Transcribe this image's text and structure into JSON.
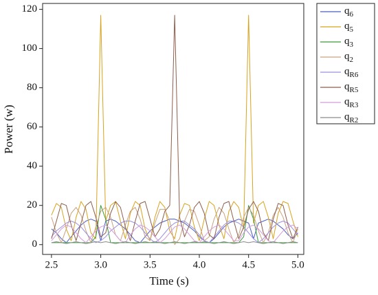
{
  "chart_data": {
    "type": "line",
    "xlabel": "Time (s)",
    "ylabel": "Power (w)",
    "x": [
      2.5,
      2.55,
      2.6,
      2.65,
      2.7,
      2.75,
      2.8,
      2.85,
      2.9,
      2.95,
      3.0,
      3.05,
      3.1,
      3.15,
      3.2,
      3.25,
      3.3,
      3.35,
      3.4,
      3.45,
      3.5,
      3.55,
      3.6,
      3.65,
      3.7,
      3.75,
      3.8,
      3.85,
      3.9,
      3.95,
      4.0,
      4.05,
      4.1,
      4.15,
      4.2,
      4.25,
      4.3,
      4.35,
      4.4,
      4.45,
      4.5,
      4.55,
      4.6,
      4.65,
      4.7,
      4.75,
      4.8,
      4.85,
      4.9,
      4.95,
      5.0
    ],
    "xlim": [
      2.41,
      5.06
    ],
    "xticks": [
      2.5,
      {
        "value": 3,
        "label": "3.0"
      },
      3.5,
      {
        "value": 4,
        "label": "4.0"
      },
      4.5,
      {
        "value": 5,
        "label": "5.0"
      }
    ],
    "ylim": [
      -5,
      123
    ],
    "yticks": [
      0,
      20,
      40,
      60,
      80,
      100,
      120
    ],
    "legend": "outside-right",
    "series": [
      {
        "name": "q6",
        "color": "#4a5cc4",
        "values": [
          8,
          6,
          3,
          1,
          4,
          7,
          10,
          12,
          13,
          12,
          2,
          12,
          13,
          12,
          10,
          8,
          5,
          2,
          1,
          4,
          7,
          9,
          11,
          12,
          13,
          13,
          12,
          11,
          9,
          7,
          4,
          2,
          1,
          3,
          6,
          9,
          11,
          12,
          13,
          12,
          11,
          3,
          11,
          12,
          13,
          12,
          10,
          8,
          5,
          3,
          6
        ]
      },
      {
        "name": "q5",
        "color": "#d8a21c",
        "values": [
          15,
          21,
          19,
          8,
          2,
          14,
          22,
          18,
          6,
          3,
          117,
          12,
          20,
          22,
          12,
          3,
          16,
          22,
          20,
          8,
          2,
          14,
          22,
          19,
          7,
          3,
          15,
          21,
          20,
          9,
          2,
          13,
          22,
          20,
          10,
          3,
          17,
          22,
          19,
          8,
          117,
          11,
          20,
          22,
          14,
          3,
          16,
          22,
          21,
          12,
          4
        ]
      },
      {
        "name": "q3",
        "color": "#3a9a3a",
        "values": [
          1,
          1,
          1,
          1,
          1,
          1,
          1,
          1,
          1,
          4,
          20,
          13,
          1,
          1,
          1,
          1,
          1,
          1,
          1,
          1,
          1,
          1,
          1,
          1,
          1,
          1,
          1,
          1,
          1,
          1,
          1,
          1,
          1,
          1,
          1,
          1,
          1,
          1,
          1,
          4,
          20,
          13,
          1,
          1,
          1,
          1,
          1,
          1,
          1,
          1,
          1
        ]
      },
      {
        "name": "q2",
        "color": "#c9a27e",
        "values": [
          14,
          6,
          1,
          8,
          16,
          19,
          15,
          7,
          1,
          9,
          17,
          19,
          14,
          5,
          2,
          10,
          17,
          19,
          13,
          4,
          2,
          11,
          18,
          18,
          12,
          0,
          3,
          12,
          18,
          17,
          10,
          2,
          4,
          13,
          19,
          16,
          8,
          1,
          5,
          14,
          19,
          15,
          7,
          1,
          6,
          15,
          19,
          14,
          6,
          1,
          8
        ]
      },
      {
        "name": "qR6",
        "color": "#9b90e0",
        "values": [
          4,
          7,
          9,
          11,
          12,
          11,
          9,
          6,
          3,
          1,
          2,
          4,
          7,
          9,
          11,
          12,
          12,
          11,
          9,
          6,
          3,
          1,
          3,
          6,
          9,
          11,
          12,
          12,
          10,
          8,
          5,
          2,
          1,
          4,
          7,
          10,
          12,
          12,
          11,
          9,
          6,
          3,
          1,
          3,
          6,
          9,
          11,
          12,
          11,
          8,
          5
        ]
      },
      {
        "name": "qR5",
        "color": "#8c5d4c",
        "values": [
          3,
          12,
          21,
          20,
          10,
          2,
          11,
          20,
          22,
          14,
          4,
          6,
          16,
          22,
          19,
          9,
          2,
          12,
          21,
          22,
          13,
          4,
          8,
          17,
          20,
          117,
          14,
          4,
          10,
          19,
          22,
          16,
          5,
          3,
          14,
          21,
          22,
          12,
          3,
          9,
          18,
          22,
          17,
          6,
          2,
          13,
          21,
          20,
          10,
          3,
          9
        ]
      },
      {
        "name": "qR3",
        "color": "#d59ada",
        "values": [
          2,
          5,
          8,
          10,
          9,
          6,
          3,
          1,
          4,
          7,
          9,
          10,
          8,
          5,
          2,
          1,
          5,
          8,
          10,
          9,
          7,
          4,
          1,
          3,
          6,
          9,
          10,
          8,
          5,
          2,
          1,
          4,
          7,
          9,
          10,
          8,
          5,
          2,
          2,
          6,
          9,
          10,
          8,
          5,
          2,
          1,
          4,
          7,
          9,
          10,
          8
        ]
      },
      {
        "name": "qR2",
        "color": "#8a8a8a",
        "values": [
          1,
          1.5,
          1,
          0.5,
          1,
          1.5,
          1,
          0.5,
          1,
          1.5,
          1,
          1.5,
          1,
          0.5,
          1,
          1.5,
          1,
          0.5,
          1,
          1.5,
          1,
          1.5,
          1,
          0.5,
          1,
          1.5,
          1,
          0.5,
          1,
          1.5,
          1,
          1.5,
          1,
          0.5,
          1,
          1.5,
          1,
          0.5,
          1,
          1.5,
          1,
          1.5,
          1,
          0.5,
          1,
          1.5,
          1,
          0.5,
          1,
          1.5,
          1
        ]
      }
    ]
  }
}
